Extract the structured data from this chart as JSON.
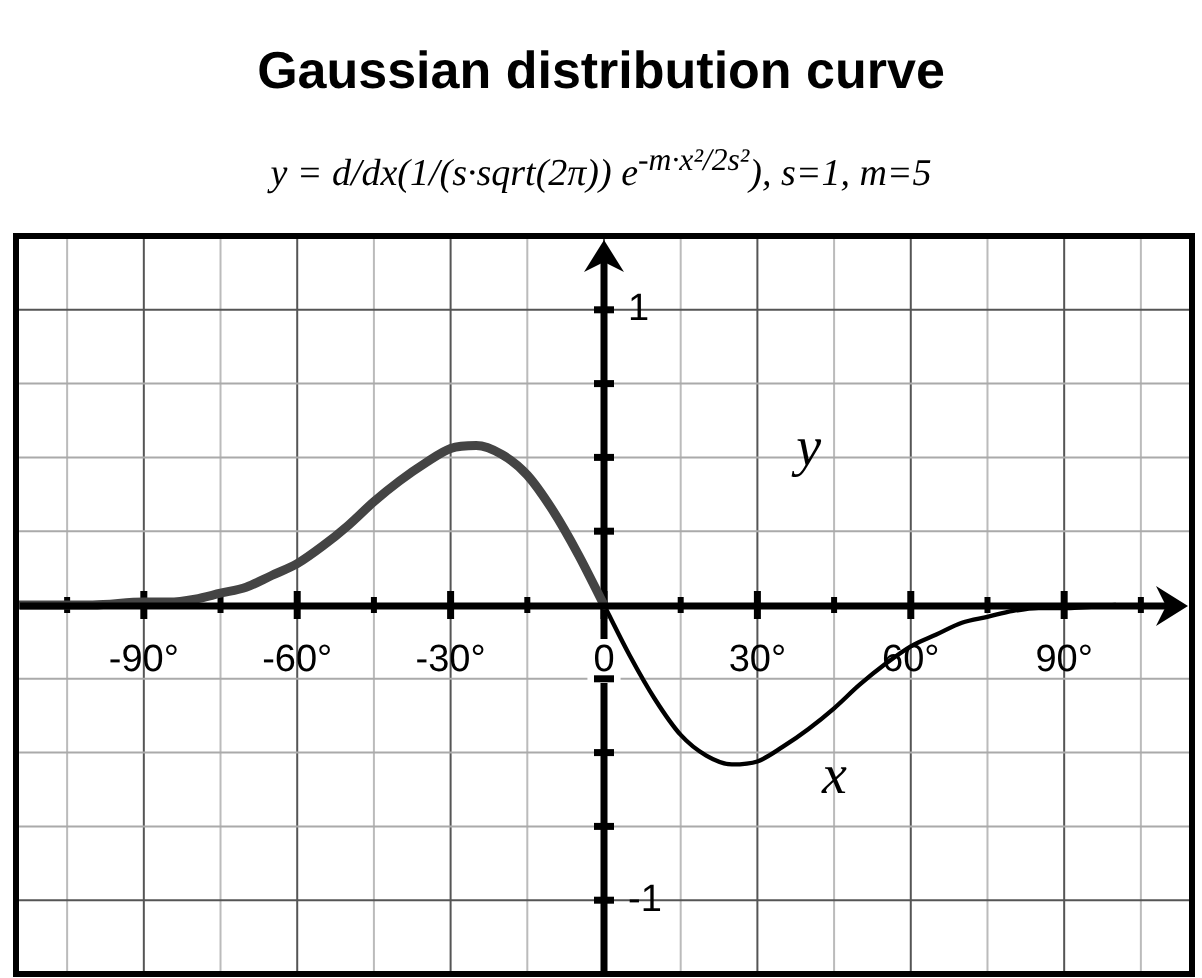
{
  "chart_data": {
    "type": "line",
    "title": "Gaussian distribution curve",
    "subtitle": "y = d/dx(1/(s·sqrt(2π)) e$^{-m·x²/2s²}$), s=1, m=5",
    "xlabel": "x",
    "ylabel": "y",
    "xlim": [
      -115,
      115
    ],
    "ylim": [
      -1.25,
      1.25
    ],
    "xticks": [
      {
        "value": -105,
        "label": null
      },
      {
        "value": -90,
        "label": "-90°"
      },
      {
        "value": -75,
        "label": null
      },
      {
        "value": -60,
        "label": "-60°"
      },
      {
        "value": -45,
        "label": null
      },
      {
        "value": -30,
        "label": "-30°"
      },
      {
        "value": -15,
        "label": null
      },
      {
        "value": 0,
        "label": "0"
      },
      {
        "value": 15,
        "label": null
      },
      {
        "value": 30,
        "label": "30°"
      },
      {
        "value": 45,
        "label": null
      },
      {
        "value": 60,
        "label": "60°"
      },
      {
        "value": 75,
        "label": null
      },
      {
        "value": 90,
        "label": "90°"
      },
      {
        "value": 105,
        "label": null
      }
    ],
    "yticks": [
      {
        "value": -1,
        "label": "-1"
      },
      {
        "value": -0.75,
        "label": null
      },
      {
        "value": -0.5,
        "label": null
      },
      {
        "value": -0.25,
        "label": null
      },
      {
        "value": 0.25,
        "label": null
      },
      {
        "value": 0.5,
        "label": null
      },
      {
        "value": 0.75,
        "label": null
      },
      {
        "value": 1,
        "label": "1"
      }
    ],
    "grid": true,
    "marker": "none",
    "line_style": "solid",
    "series": [
      {
        "color": "#444444",
        "x": [
          -115,
          -100,
          -90,
          -85,
          -80,
          -75,
          -70,
          -65,
          -60,
          -55,
          -50,
          -45,
          -40,
          -35,
          -30,
          -25,
          -20,
          -15,
          -10,
          -5,
          0
        ],
        "values": [
          0,
          0,
          0.01,
          0.01,
          0.02,
          0.04,
          0.06,
          0.1,
          0.14,
          0.2,
          0.27,
          0.35,
          0.42,
          0.48,
          0.53,
          0.54,
          0.51,
          0.44,
          0.32,
          0.17,
          0
        ]
      },
      {
        "color": "#000000",
        "x": [
          0,
          5,
          10,
          15,
          20,
          25,
          30,
          35,
          40,
          45,
          50,
          55,
          60,
          65,
          70,
          75,
          80,
          85,
          90,
          100
        ],
        "values": [
          0,
          -0.17,
          -0.32,
          -0.44,
          -0.51,
          -0.54,
          -0.53,
          -0.48,
          -0.42,
          -0.35,
          -0.27,
          -0.2,
          -0.14,
          -0.1,
          -0.06,
          -0.04,
          -0.02,
          -0.01,
          -0.01,
          0
        ]
      }
    ]
  }
}
